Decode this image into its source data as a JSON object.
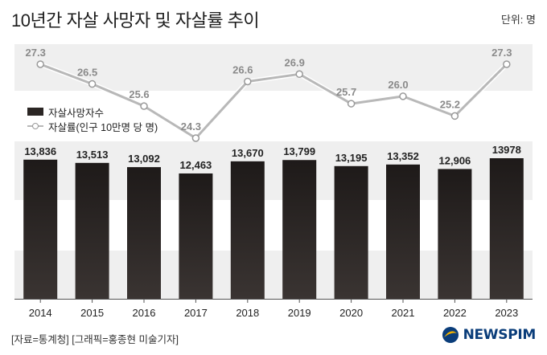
{
  "header": {
    "title": "10년간 자살 사망자 및 자살률 추이",
    "unit": "단위: 명"
  },
  "legend": {
    "bar_label": "자살사망자수",
    "line_label": "자살률(인구 10만명 당 명)"
  },
  "footer": {
    "credit": "[자료=통계청] [그래픽=홍종현 미술기자]",
    "brand": "NEWSPIM"
  },
  "colors": {
    "bar": "#2b2624",
    "bar_top": "#1e1a19",
    "line": "#b8b8b8",
    "band": "#efefef",
    "brand": "#0a3d7a"
  },
  "chart_data": {
    "type": "bar+line",
    "categories": [
      "2014",
      "2015",
      "2016",
      "2017",
      "2018",
      "2019",
      "2020",
      "2021",
      "2022",
      "2023"
    ],
    "series": [
      {
        "name": "자살사망자수",
        "type": "bar",
        "values": [
          13836,
          13513,
          13092,
          12463,
          13670,
          13799,
          13195,
          13352,
          12906,
          13978
        ],
        "labels": [
          "13,836",
          "13,513",
          "13,092",
          "12,463",
          "13,670",
          "13,799",
          "13,195",
          "13,352",
          "12,906",
          "13978"
        ]
      },
      {
        "name": "자살률(인구 10만명 당 명)",
        "type": "line",
        "values": [
          27.3,
          26.5,
          25.6,
          24.3,
          26.6,
          26.9,
          25.7,
          26.0,
          25.2,
          27.3
        ],
        "labels": [
          "27.3",
          "26.5",
          "25.6",
          "24.3",
          "26.6",
          "26.9",
          "25.7",
          "26.0",
          "25.2",
          "27.3"
        ]
      }
    ],
    "grid": "alternating horizontal bands",
    "legend_position": "left, between line and bars"
  }
}
